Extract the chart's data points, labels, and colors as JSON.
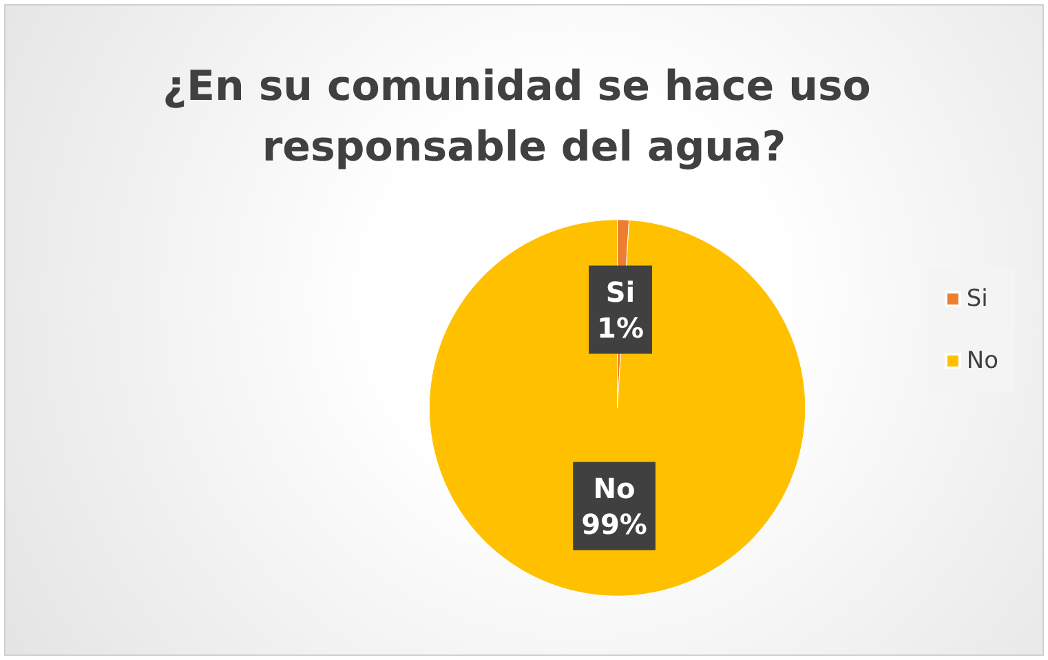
{
  "chart_data": {
    "type": "pie",
    "title": "¿En su comunidad se hace uso responsable del agua?",
    "categories": [
      "Si",
      "No"
    ],
    "values": [
      1,
      99
    ],
    "colors": [
      "#ed7d31",
      "#ffc000"
    ],
    "value_labels": [
      "1%",
      "99%"
    ],
    "legend": "right"
  }
}
